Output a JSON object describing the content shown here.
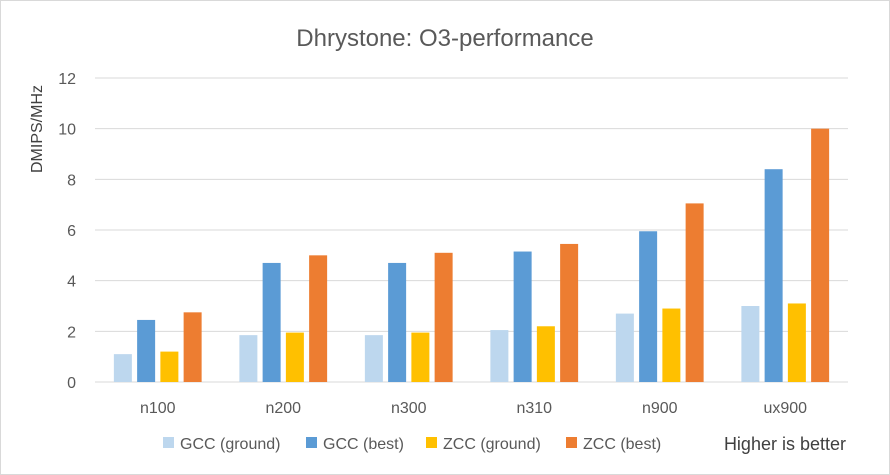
{
  "chart_data": {
    "type": "bar",
    "title": "Dhrystone: O3-performance",
    "ylabel": "DMIPS/MHz",
    "xlabel": "",
    "ylim": [
      0,
      12
    ],
    "yticks": [
      0,
      2,
      4,
      6,
      8,
      10,
      12
    ],
    "ytick_labels": [
      "0",
      "2",
      "4",
      "6",
      "8",
      "10",
      "12"
    ],
    "grid": true,
    "legend_position": "bottom",
    "categories": [
      "n100",
      "n200",
      "n300",
      "n310",
      "n900",
      "ux900"
    ],
    "series": [
      {
        "name": "GCC (ground)",
        "color": "#bdd7ee",
        "values": [
          1.1,
          1.85,
          1.85,
          2.05,
          2.7,
          3.0
        ]
      },
      {
        "name": "GCC (best)",
        "color": "#5b9bd5",
        "values": [
          2.45,
          4.7,
          4.7,
          5.15,
          5.95,
          8.4
        ]
      },
      {
        "name": "ZCC (ground)",
        "color": "#ffc000",
        "values": [
          1.2,
          1.95,
          1.95,
          2.2,
          2.9,
          3.1
        ]
      },
      {
        "name": "ZCC (best)",
        "color": "#ed7d31",
        "values": [
          2.75,
          5.0,
          5.1,
          5.45,
          7.05,
          10.0
        ]
      }
    ],
    "annotation": "Higher is better"
  }
}
